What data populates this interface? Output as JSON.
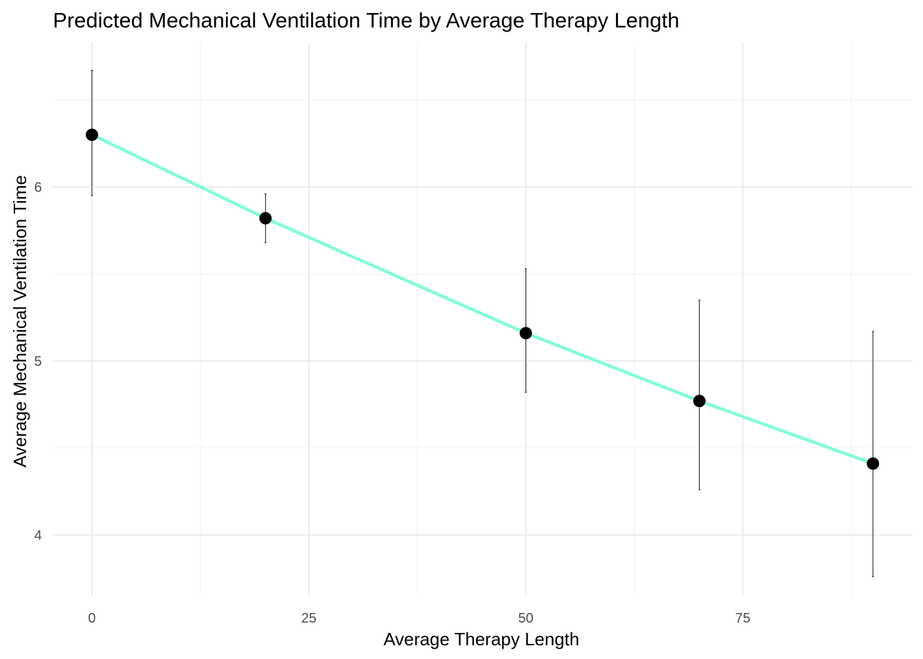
{
  "chart_data": {
    "type": "line",
    "title": "Predicted Mechanical Ventilation Time by Average Therapy Length",
    "xlabel": "Average Therapy Length",
    "ylabel": "Average Mechanical Ventilation Time",
    "xlim": [
      -4.5,
      94.5
    ],
    "ylim": [
      3.65,
      6.83
    ],
    "x_ticks": [
      0,
      25,
      50,
      75
    ],
    "x_tick_labels": [
      "0",
      "25",
      "50",
      "75"
    ],
    "y_ticks": [
      4,
      5,
      6
    ],
    "y_tick_labels": [
      "4",
      "5",
      "6"
    ],
    "grid": true,
    "line_color": "#7fffd4",
    "point_color": "#000000",
    "series": [
      {
        "x": [
          0,
          20,
          50,
          70,
          90
        ],
        "y": [
          6.3,
          5.82,
          5.16,
          4.77,
          4.41
        ],
        "ymin": [
          5.95,
          5.68,
          4.82,
          4.26,
          3.76
        ],
        "ymax": [
          6.67,
          5.96,
          5.53,
          5.35,
          5.17
        ]
      }
    ]
  }
}
